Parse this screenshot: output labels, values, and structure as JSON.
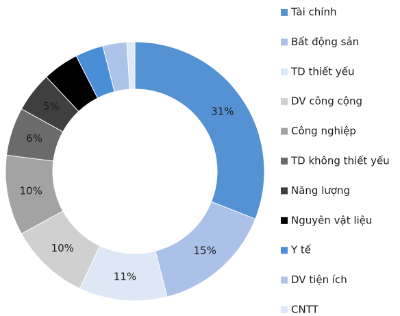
{
  "chart_data": {
    "type": "donut",
    "categories": [
      "Tài chính",
      "Bất động sản",
      "TD thiết yếu",
      "DV công cộng",
      "Công nghiệp",
      "TD không thiết yếu",
      "Năng lượng",
      "Nguyên vật liệu",
      "Y tế",
      "DV tiện ích",
      "CNTT"
    ],
    "values": [
      31,
      15,
      11,
      10,
      10,
      6,
      5,
      4.5,
      3.5,
      3,
      1
    ],
    "value_labels": [
      "31%",
      "15%",
      "11%",
      "10%",
      "10%",
      "6%",
      "5%",
      null,
      null,
      null,
      null
    ],
    "colors": [
      "#5592d3",
      "#abc1e7",
      "#dee7f6",
      "#d0d0d0",
      "#a3a3a3",
      "#6b6b6b",
      "#3f3f3f",
      "#000000",
      "#4a8ed6",
      "#adc3e8",
      "#dfe8f6"
    ],
    "legend": "right"
  }
}
